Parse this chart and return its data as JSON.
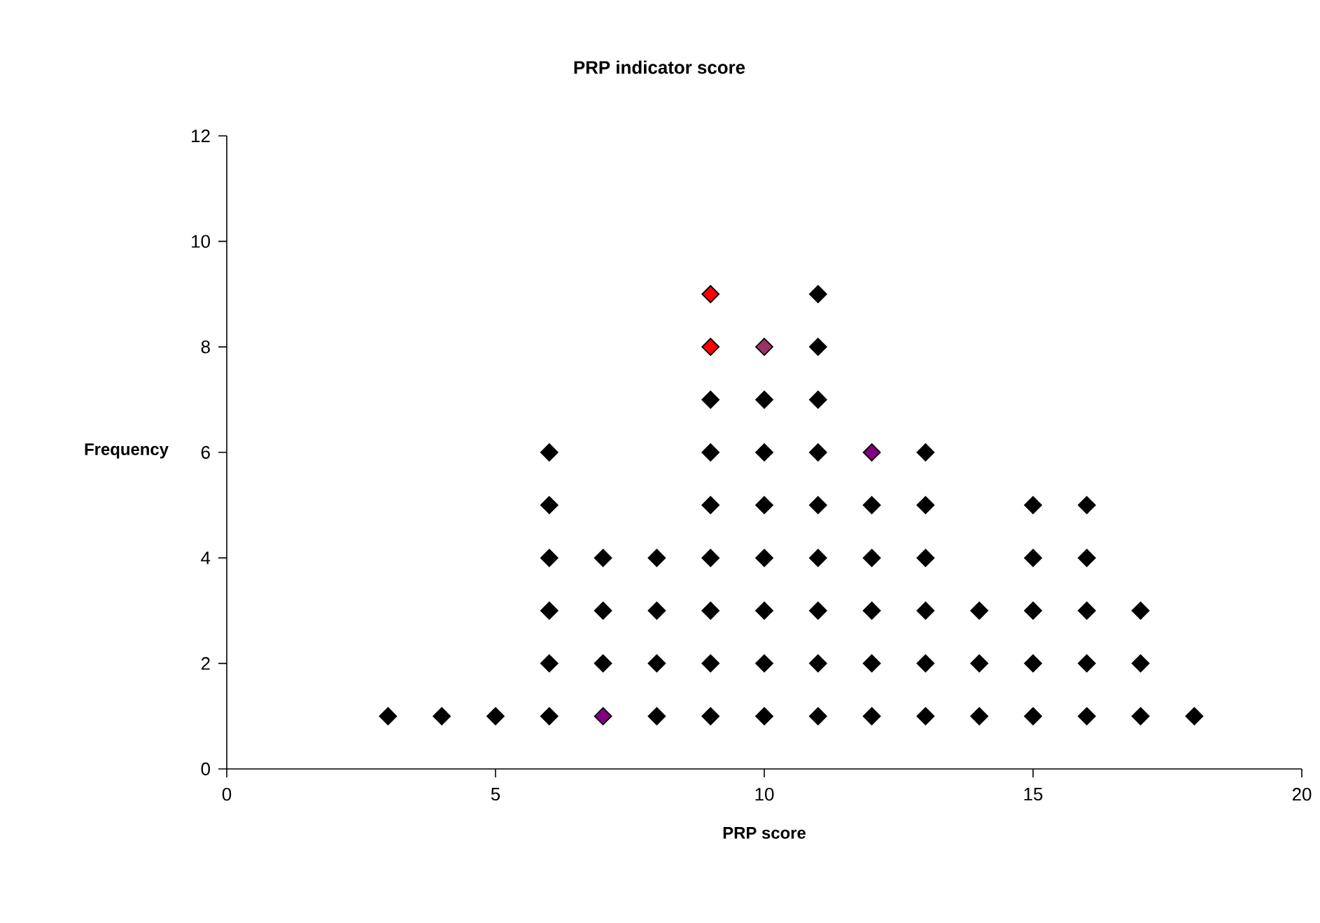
{
  "chart_data": {
    "type": "scatter",
    "title": "PRP indicator score",
    "xlabel": "PRP score",
    "ylabel": "Frequency",
    "series": [
      {
        "color": "#000000",
        "x": [
          3,
          4,
          5,
          6,
          6,
          6,
          6,
          6,
          6,
          7,
          7,
          7,
          8,
          8,
          8,
          8,
          9,
          9,
          9,
          9,
          9,
          9,
          9,
          10,
          10,
          10,
          10,
          10,
          10,
          10,
          11,
          11,
          11,
          11,
          11,
          11,
          11,
          11,
          11,
          12,
          12,
          12,
          12,
          12,
          13,
          13,
          13,
          13,
          13,
          13,
          14,
          14,
          14,
          15,
          15,
          15,
          15,
          15,
          16,
          16,
          16,
          16,
          16,
          17,
          17,
          17,
          18
        ],
        "values": [
          1,
          1,
          1,
          1,
          2,
          3,
          4,
          5,
          6,
          2,
          3,
          4,
          1,
          2,
          3,
          4,
          1,
          2,
          3,
          4,
          5,
          6,
          7,
          1,
          2,
          3,
          4,
          5,
          6,
          7,
          1,
          2,
          3,
          4,
          5,
          6,
          7,
          8,
          9,
          1,
          2,
          3,
          4,
          5,
          1,
          2,
          3,
          4,
          5,
          6,
          1,
          2,
          3,
          1,
          2,
          3,
          4,
          5,
          1,
          2,
          3,
          4,
          5,
          1,
          2,
          3,
          1
        ]
      },
      {
        "color": "#ff0000",
        "x": [
          9,
          9
        ],
        "values": [
          8,
          9
        ]
      },
      {
        "color": "#993366",
        "x": [
          10
        ],
        "values": [
          8
        ]
      },
      {
        "color": "#800080",
        "x": [
          7,
          12
        ],
        "values": [
          1,
          6
        ]
      }
    ],
    "xlim": [
      0,
      20
    ],
    "xticks": [
      0,
      5,
      10,
      15,
      20
    ],
    "ylim": [
      0,
      12
    ],
    "yticks": [
      0,
      2,
      4,
      6,
      8,
      10,
      12
    ],
    "grid": false,
    "marker": "diamond"
  }
}
